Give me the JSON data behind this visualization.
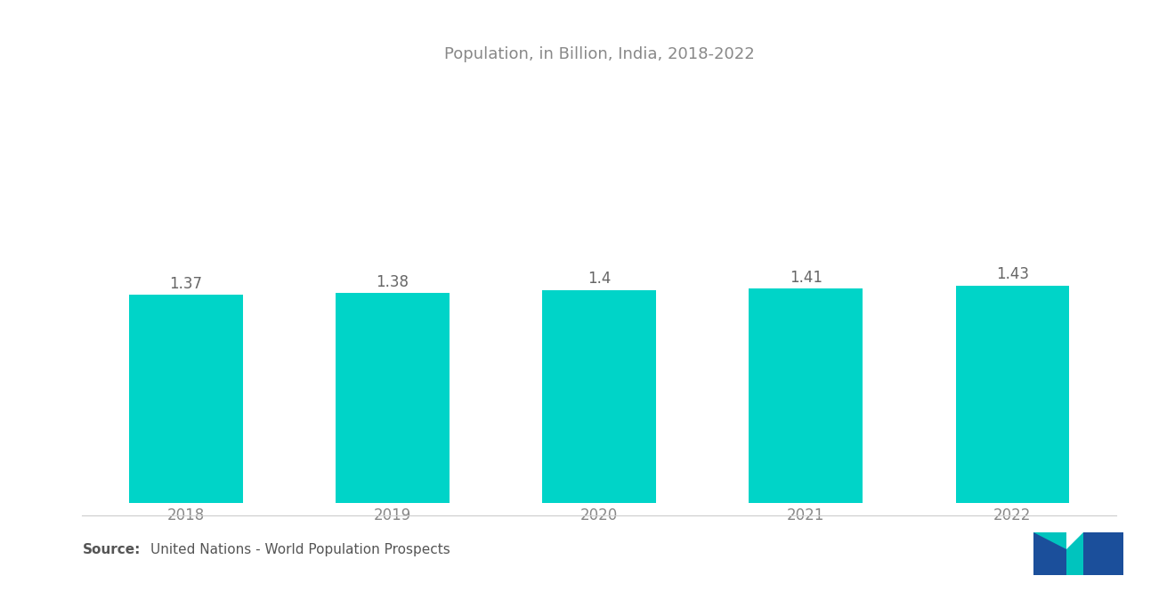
{
  "title": "Population, in Billion, India, 2018-2022",
  "categories": [
    "2018",
    "2019",
    "2020",
    "2021",
    "2022"
  ],
  "values": [
    1.37,
    1.38,
    1.4,
    1.41,
    1.43
  ],
  "value_labels": [
    "1.37",
    "1.38",
    "1.4",
    "1.41",
    "1.43"
  ],
  "bar_color": "#00D4C8",
  "background_color": "#FFFFFF",
  "title_color": "#888888",
  "label_color": "#666666",
  "tick_color": "#888888",
  "source_bold": "Source:",
  "source_text": "  United Nations - World Population Prospects",
  "ylim_min": 0,
  "ylim_max": 2.8,
  "title_fontsize": 13,
  "label_fontsize": 12,
  "tick_fontsize": 12,
  "source_fontsize": 11,
  "bar_width": 0.55
}
